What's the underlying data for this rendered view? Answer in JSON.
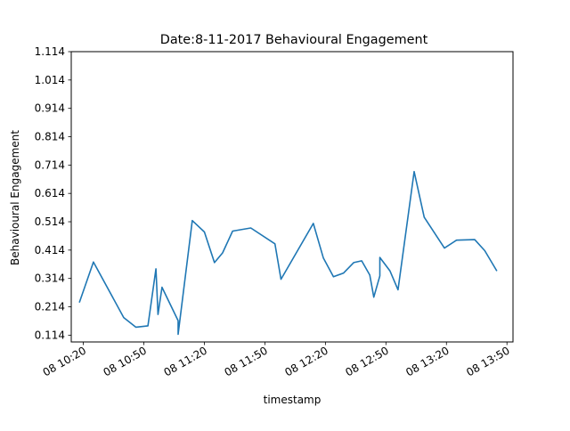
{
  "chart_data": {
    "type": "line",
    "title": "Date:8-11-2017 Behavioural Engagement",
    "xlabel": "timestamp",
    "ylabel": "Behavioural Engagement",
    "grid": false,
    "line_color": "#1f77b4",
    "xlim": [
      "2017-11-08 10:14",
      "2017-11-08 13:53"
    ],
    "ylim": [
      0.09,
      1.114
    ],
    "y_ticks": [
      0.114,
      0.214,
      0.314,
      0.414,
      0.514,
      0.614,
      0.714,
      0.814,
      0.914,
      1.014,
      1.114
    ],
    "y_tick_labels": [
      "0.114",
      "0.214",
      "0.314",
      "0.414",
      "0.514",
      "0.614",
      "0.714",
      "0.814",
      "0.914",
      "1.014",
      "1.114"
    ],
    "x_ticks": [
      "2017-11-08 10:20",
      "2017-11-08 10:50",
      "2017-11-08 11:20",
      "2017-11-08 11:50",
      "2017-11-08 12:20",
      "2017-11-08 12:50",
      "2017-11-08 13:20",
      "2017-11-08 13:50"
    ],
    "x_tick_labels": [
      "08 10:20",
      "08 10:50",
      "08 11:20",
      "08 11:50",
      "08 12:20",
      "08 12:50",
      "08 13:20",
      "08 13:50"
    ],
    "series": [
      {
        "x": [
          "2017-11-08 10:18",
          "2017-11-08 10:25",
          "2017-11-08 10:40",
          "2017-11-08 10:46",
          "2017-11-08 10:52",
          "2017-11-08 10:56",
          "2017-11-08 10:57",
          "2017-11-08 10:59",
          "2017-11-08 11:07",
          "2017-11-08 11:07",
          "2017-11-08 11:14",
          "2017-11-08 11:20",
          "2017-11-08 11:25",
          "2017-11-08 11:29",
          "2017-11-08 11:34",
          "2017-11-08 11:43",
          "2017-11-08 11:55",
          "2017-11-08 11:58",
          "2017-11-08 12:14",
          "2017-11-08 12:19",
          "2017-11-08 12:24",
          "2017-11-08 12:29",
          "2017-11-08 12:34",
          "2017-11-08 12:38",
          "2017-11-08 12:42",
          "2017-11-08 12:44",
          "2017-11-08 12:47",
          "2017-11-08 12:47",
          "2017-11-08 12:52",
          "2017-11-08 12:56",
          "2017-11-08 13:04",
          "2017-11-08 13:09",
          "2017-11-08 13:19",
          "2017-11-08 13:25",
          "2017-11-08 13:34",
          "2017-11-08 13:39",
          "2017-11-08 13:45"
        ],
        "values": [
          0.229,
          0.372,
          0.176,
          0.142,
          0.147,
          0.348,
          0.187,
          0.283,
          0.165,
          0.117,
          0.518,
          0.478,
          0.37,
          0.404,
          0.481,
          0.492,
          0.436,
          0.311,
          0.508,
          0.386,
          0.32,
          0.333,
          0.37,
          0.376,
          0.326,
          0.248,
          0.323,
          0.388,
          0.341,
          0.274,
          0.691,
          0.53,
          0.421,
          0.449,
          0.451,
          0.412,
          0.34
        ]
      }
    ]
  }
}
